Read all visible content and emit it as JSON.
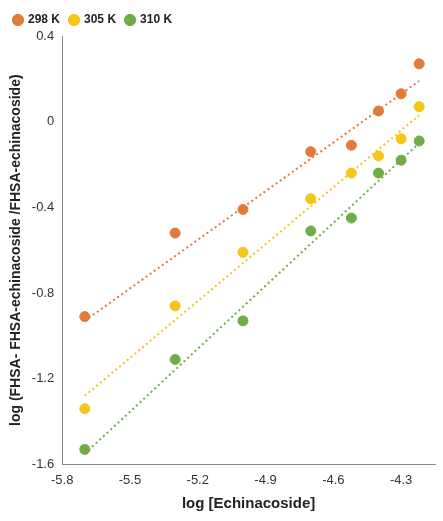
{
  "chart_data": {
    "type": "scatter",
    "x_label": "log [Echinacoside]",
    "y_label": "log (FHSA- FHSA-echinacoside /FHSA-echinacoside)",
    "x": [
      -5.7,
      -5.3,
      -5.0,
      -4.7,
      -4.52,
      -4.4,
      -4.3,
      -4.22
    ],
    "series": [
      {
        "name": "298 K",
        "color": "#e07b39",
        "marker": "circle",
        "values": [
          -0.91,
          -0.52,
          -0.41,
          -0.14,
          -0.11,
          0.05,
          0.13,
          0.27
        ],
        "fit": {
          "x": [
            -5.7,
            -4.22
          ],
          "values": [
            -0.93,
            0.19
          ],
          "line_style": "dotted"
        }
      },
      {
        "name": "305 K",
        "color": "#f5c518",
        "marker": "circle",
        "values": [
          -1.34,
          -0.86,
          -0.61,
          -0.36,
          -0.24,
          -0.16,
          -0.08,
          0.07
        ],
        "fit": {
          "x": [
            -5.7,
            -4.22
          ],
          "values": [
            -1.28,
            0.03
          ],
          "line_style": "dotted"
        }
      },
      {
        "name": "310 K",
        "color": "#70ad47",
        "marker": "circle",
        "values": [
          -1.53,
          -1.11,
          -0.93,
          -0.51,
          -0.45,
          -0.24,
          -0.18,
          -0.09
        ],
        "fit": {
          "x": [
            -5.7,
            -4.22
          ],
          "values": [
            -1.55,
            -0.1
          ],
          "line_style": "dotted"
        }
      }
    ],
    "xlim": [
      -5.8,
      -4.15
    ],
    "xticks": [
      -5.8,
      -5.5,
      -5.2,
      -4.9,
      -4.6,
      -4.3
    ],
    "ylim": [
      -1.6,
      0.4
    ],
    "yticks": [
      -1.6,
      -1.2,
      -0.8,
      -0.4,
      0,
      0.4
    ],
    "grid": false,
    "legend": "top left"
  }
}
